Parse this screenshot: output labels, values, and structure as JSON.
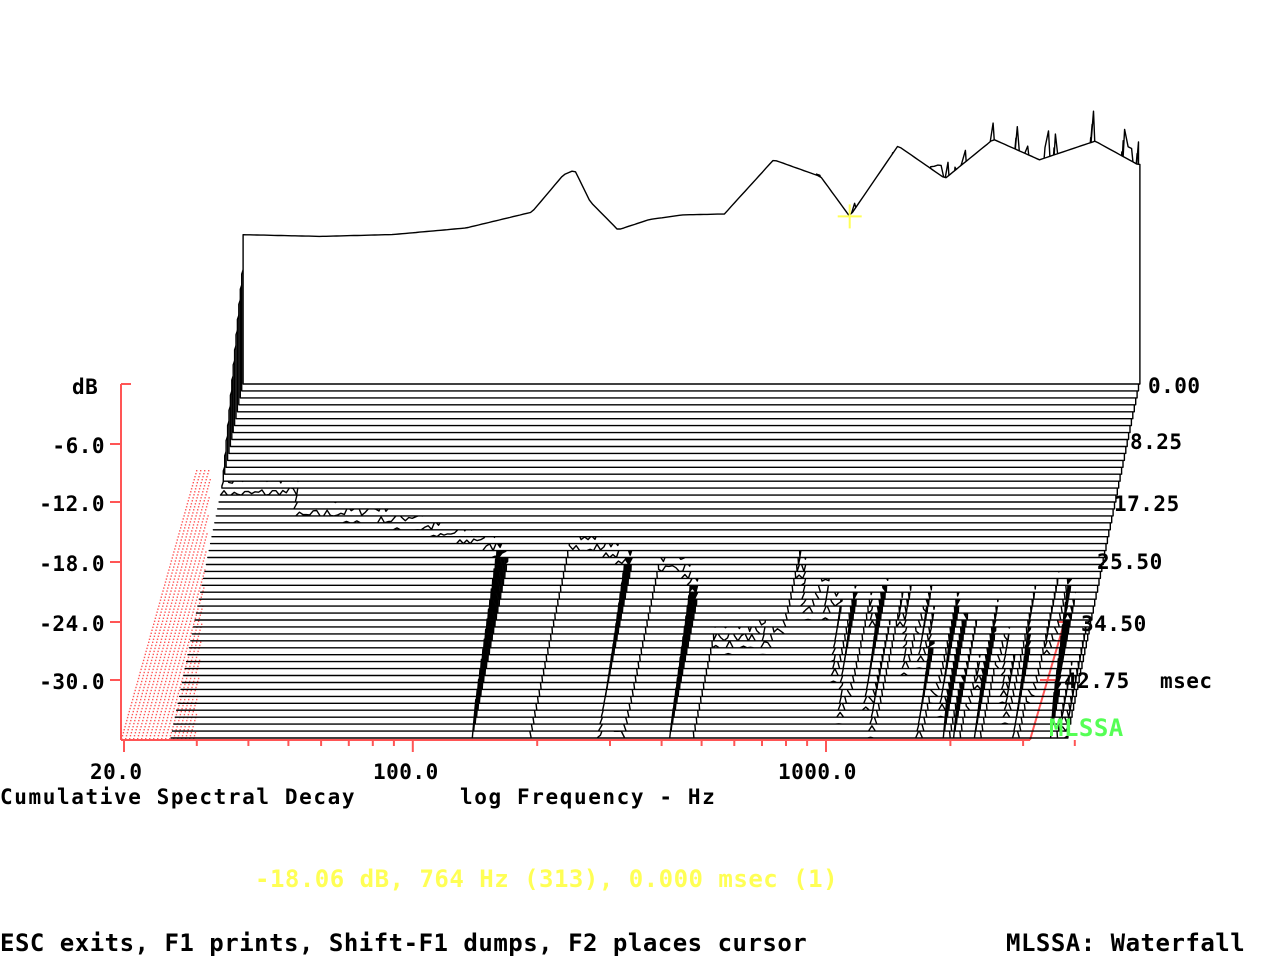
{
  "app_title": "MLSSA: Waterfall",
  "status_line": "-18.06 dB, 764 Hz (313), 0.000 msec (1)",
  "help_line": "ESC exits, F1 prints, Shift-F1 dumps, F2 places cursor",
  "brand_label": "MLSSA",
  "colors": {
    "axis": "#ff5555",
    "traces": "#000000",
    "status": "#ffff55",
    "brand": "#55ff55",
    "background": "#ffffff"
  },
  "chart_data": {
    "type": "area",
    "title": "Cumulative Spectral Decay",
    "xlabel": "log Frequency - Hz",
    "ylabel": "dB",
    "zlabel": "msec",
    "x_scale": "log",
    "xlim": [
      20,
      4000
    ],
    "ylim": [
      -36,
      0
    ],
    "zlim": [
      0,
      42.75
    ],
    "x_ticks": [
      "20.0",
      "100.0",
      "1000.0"
    ],
    "y_ticks": [
      "-6.0",
      "-12.0",
      "-18.0",
      "-24.0",
      "-30.0"
    ],
    "z_ticks": [
      "0.00",
      "8.25",
      "17.25",
      "25.50",
      "34.50",
      "42.75"
    ],
    "slice_count": 52,
    "cursor": {
      "level_db": -18.06,
      "freq_hz": 764,
      "bin": 313,
      "time_msec": 0.0,
      "slice": 1
    },
    "first_slice_points": [
      [
        25,
        -20.0
      ],
      [
        40,
        -20.2
      ],
      [
        60,
        -20.0
      ],
      [
        90,
        -19.3
      ],
      [
        130,
        -17.6
      ],
      [
        155,
        -13.6
      ],
      [
        165,
        -13.1
      ],
      [
        180,
        -16.5
      ],
      [
        210,
        -19.5
      ],
      [
        250,
        -18.4
      ],
      [
        300,
        -17.9
      ],
      [
        380,
        -17.8
      ],
      [
        500,
        -12.0
      ],
      [
        650,
        -13.8
      ],
      [
        764,
        -18.06
      ],
      [
        1000,
        -10.5
      ],
      [
        1300,
        -14.0
      ],
      [
        1700,
        -9.8
      ],
      [
        2200,
        -12.0
      ],
      [
        3000,
        -10.0
      ],
      [
        3800,
        -12.5
      ]
    ]
  }
}
